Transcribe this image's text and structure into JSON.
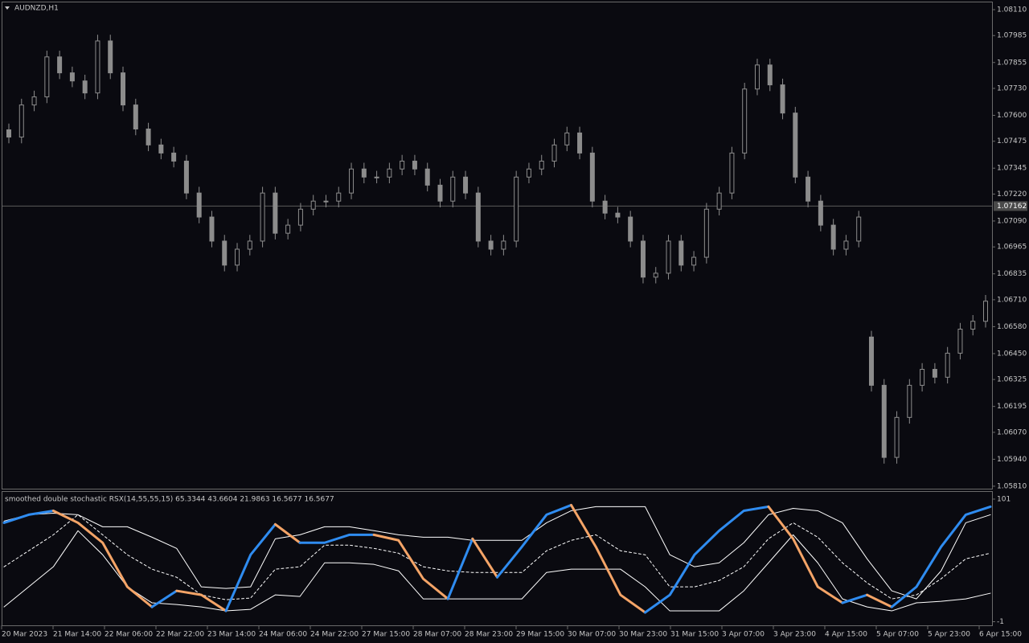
{
  "chart_data": [
    {
      "type": "candlestick",
      "title": "AUDNZD,H1",
      "color": "#8c8c8c",
      "ylim": [
        1.05798,
        1.08145
      ],
      "yticks": [
        {
          "value": 1.0811,
          "label": "1.08110"
        },
        {
          "value": 1.07985,
          "label": "1.07985"
        },
        {
          "value": 1.07855,
          "label": "1.07855"
        },
        {
          "value": 1.0773,
          "label": "1.07730"
        },
        {
          "value": 1.076,
          "label": "1.07600"
        },
        {
          "value": 1.07475,
          "label": "1.07475"
        },
        {
          "value": 1.07345,
          "label": "1.07345"
        },
        {
          "value": 1.0722,
          "label": "1.07220"
        },
        {
          "value": 1.0709,
          "label": "1.07090"
        },
        {
          "value": 1.06965,
          "label": "1.06965"
        },
        {
          "value": 1.06835,
          "label": "1.06835"
        },
        {
          "value": 1.0671,
          "label": "1.06710"
        },
        {
          "value": 1.0658,
          "label": "1.06580"
        },
        {
          "value": 1.0645,
          "label": "1.06450"
        },
        {
          "value": 1.06325,
          "label": "1.06325"
        },
        {
          "value": 1.06195,
          "label": "1.06195"
        },
        {
          "value": 1.0607,
          "label": "1.06070"
        },
        {
          "value": 1.0594,
          "label": "1.05940"
        },
        {
          "value": 1.0581,
          "label": "1.05810"
        }
      ],
      "current_price": {
        "value": 1.07162,
        "label": "1.07162"
      },
      "xtick_labels": [
        "20 Mar 2023",
        "21 Mar 14:00",
        "22 Mar 06:00",
        "22 Mar 22:00",
        "23 Mar 14:00",
        "24 Mar 06:00",
        "24 Mar 22:00",
        "27 Mar 15:00",
        "28 Mar 07:00",
        "28 Mar 23:00",
        "29 Mar 15:00",
        "30 Mar 07:00",
        "30 Mar 23:00",
        "31 Mar 15:00",
        "3 Apr 07:00",
        "3 Apr 23:00",
        "4 Apr 15:00",
        "5 Apr 07:00",
        "5 Apr 23:00",
        "6 Apr 15:00"
      ],
      "open": [
        1.0753,
        1.07495,
        1.0765,
        1.07689,
        1.07882,
        1.07805,
        1.07766,
        1.07708,
        1.07959,
        1.07805,
        1.0765,
        1.07534,
        1.07457,
        1.07418,
        1.07379,
        1.07225,
        1.07109,
        1.06993,
        1.06877,
        1.06954,
        1.06993,
        1.07225,
        1.07031,
        1.0707,
        1.07147,
        1.07186,
        1.07186,
        1.07225,
        1.07341,
        1.07302,
        1.07302,
        1.07341,
        1.07379,
        1.07341,
        1.07263,
        1.07186,
        1.07302,
        1.07225,
        1.06993,
        1.06954,
        1.06993,
        1.07302,
        1.07341,
        1.07379,
        1.07457,
        1.07515,
        1.07418,
        1.07186,
        1.07128,
        1.07109,
        1.06993,
        1.06819,
        1.06838,
        1.06993,
        1.06877,
        1.06915,
        1.07147,
        1.07225,
        1.07418,
        1.07727,
        1.07843,
        1.07747,
        1.07611,
        1.07302,
        1.07186,
        1.0707,
        1.06954,
        1.06993,
        1.0653,
        1.06297,
        1.05949,
        1.06142,
        1.06297,
        1.06374,
        1.06336,
        1.06452,
        1.06568,
        1.06606
      ],
      "high": [
        1.0756,
        1.0768,
        1.07719,
        1.07912,
        1.07912,
        1.07835,
        1.07796,
        1.07989,
        1.07989,
        1.07835,
        1.0768,
        1.07564,
        1.07487,
        1.07448,
        1.07409,
        1.07255,
        1.07139,
        1.07023,
        1.06984,
        1.07023,
        1.07255,
        1.07255,
        1.071,
        1.07177,
        1.07216,
        1.07216,
        1.07255,
        1.07371,
        1.07371,
        1.07332,
        1.07371,
        1.07409,
        1.07409,
        1.07371,
        1.07293,
        1.07332,
        1.07332,
        1.07255,
        1.07023,
        1.07023,
        1.07332,
        1.07371,
        1.07409,
        1.07487,
        1.07545,
        1.07545,
        1.07448,
        1.07216,
        1.07158,
        1.07139,
        1.07023,
        1.06868,
        1.07023,
        1.07023,
        1.06945,
        1.07177,
        1.07255,
        1.07448,
        1.07757,
        1.07873,
        1.07873,
        1.07777,
        1.07641,
        1.07332,
        1.07216,
        1.071,
        1.07023,
        1.07139,
        1.0656,
        1.06327,
        1.06172,
        1.06327,
        1.06404,
        1.06404,
        1.06482,
        1.06598,
        1.06636,
        1.06733
      ],
      "low": [
        1.07465,
        1.07465,
        1.0762,
        1.07659,
        1.07775,
        1.07736,
        1.07678,
        1.07678,
        1.07775,
        1.0762,
        1.07504,
        1.07427,
        1.07388,
        1.07349,
        1.07195,
        1.07079,
        1.06963,
        1.06847,
        1.06847,
        1.06924,
        1.06963,
        1.07001,
        1.07001,
        1.0704,
        1.07117,
        1.07156,
        1.07156,
        1.07195,
        1.07272,
        1.07272,
        1.07272,
        1.07311,
        1.07311,
        1.07233,
        1.07156,
        1.07156,
        1.07195,
        1.06963,
        1.06924,
        1.06924,
        1.06963,
        1.07272,
        1.07311,
        1.07349,
        1.07427,
        1.07388,
        1.07156,
        1.07098,
        1.07079,
        1.06963,
        1.06789,
        1.06789,
        1.06808,
        1.06847,
        1.06847,
        1.06885,
        1.07117,
        1.07195,
        1.07388,
        1.07697,
        1.07717,
        1.07581,
        1.07272,
        1.07156,
        1.0704,
        1.06924,
        1.06924,
        1.06963,
        1.06267,
        1.05919,
        1.05919,
        1.06112,
        1.06267,
        1.06306,
        1.06306,
        1.06422,
        1.06538,
        1.06576
      ],
      "close": [
        1.07495,
        1.0765,
        1.07689,
        1.07882,
        1.07805,
        1.07766,
        1.07708,
        1.07959,
        1.07805,
        1.0765,
        1.07534,
        1.07457,
        1.07418,
        1.07379,
        1.07225,
        1.07109,
        1.06993,
        1.06877,
        1.06954,
        1.06993,
        1.07225,
        1.07031,
        1.0707,
        1.07147,
        1.07186,
        1.07186,
        1.07225,
        1.07341,
        1.07302,
        1.07302,
        1.07341,
        1.07379,
        1.07341,
        1.07263,
        1.07186,
        1.07302,
        1.07225,
        1.06993,
        1.06954,
        1.06993,
        1.07302,
        1.07341,
        1.07379,
        1.07457,
        1.07515,
        1.07418,
        1.07186,
        1.07128,
        1.07109,
        1.06993,
        1.06819,
        1.06838,
        1.06993,
        1.06877,
        1.06915,
        1.07147,
        1.07225,
        1.07418,
        1.07727,
        1.07843,
        1.07747,
        1.07611,
        1.07302,
        1.07186,
        1.0707,
        1.06954,
        1.06993,
        1.07109,
        1.06297,
        1.05949,
        1.06142,
        1.06297,
        1.06374,
        1.06336,
        1.06452,
        1.06568,
        1.06606,
        1.06703
      ]
    },
    {
      "type": "line",
      "title": "smoothed double stochastic RSX(14,55,55,15) 65.3344 43.6604 21.9863 16.5677 16.5677",
      "ylim": [
        -4,
        107
      ],
      "yticks": [
        101,
        -1
      ],
      "series": [
        {
          "color": "#ffffff",
          "style": "solid",
          "width": 1,
          "values": [
            82.7,
            88,
            89.3,
            88,
            78,
            78,
            69.3,
            60,
            28,
            26.7,
            28,
            68,
            71.3,
            78,
            78,
            74.7,
            71.3,
            69.3,
            69.3,
            66.7,
            66.7,
            66.7,
            81.3,
            91.3,
            94.7,
            94.7,
            94.7,
            54.7,
            44.7,
            48,
            64.7,
            88,
            93.3,
            91.3,
            81.3,
            51.3,
            24.7,
            18,
            41.3,
            81.3,
            88
          ]
        },
        {
          "color": "#ffffff",
          "style": "solid",
          "width": 1,
          "values": [
            11.3,
            28,
            44.7,
            74.7,
            54.7,
            28,
            14.7,
            13.3,
            11.3,
            8,
            9.3,
            21.3,
            20,
            48,
            48,
            46.7,
            41.3,
            18,
            18,
            18,
            18,
            18,
            40,
            42.7,
            42.7,
            42.7,
            28,
            8,
            8,
            8,
            24.7,
            48,
            71.3,
            48,
            18,
            11.3,
            8,
            14.7,
            16,
            18,
            22.7
          ]
        },
        {
          "color": "#ffffff",
          "style": "dashed",
          "width": 1,
          "values": [
            44.7,
            58,
            71.3,
            88,
            71.3,
            54.7,
            42.7,
            36,
            21.3,
            17.3,
            18.7,
            42.7,
            44.7,
            62.7,
            62.7,
            60,
            56,
            44.7,
            41.3,
            40,
            40,
            40,
            58,
            66.7,
            71.3,
            58,
            54.7,
            28,
            28,
            33.3,
            44.7,
            68,
            81.3,
            69.3,
            48,
            31.3,
            18,
            21.3,
            34.7,
            51.3,
            56
          ]
        },
        {
          "color": "#2f8cf0",
          "down_color": "#f4a467",
          "style": "solid",
          "width": 3,
          "values": [
            81.3,
            88,
            91.3,
            81.3,
            64.7,
            28,
            11.3,
            24.7,
            21.3,
            8,
            54.7,
            80,
            64.7,
            64.7,
            71.3,
            71.3,
            66.7,
            34.7,
            18,
            68,
            36,
            61.3,
            88,
            96,
            61.3,
            21.3,
            6.7,
            21.3,
            54.7,
            74.7,
            91.3,
            94.7,
            68,
            28,
            14.7,
            21.3,
            11.3,
            28,
            61.3,
            88,
            94.7
          ]
        }
      ]
    }
  ]
}
